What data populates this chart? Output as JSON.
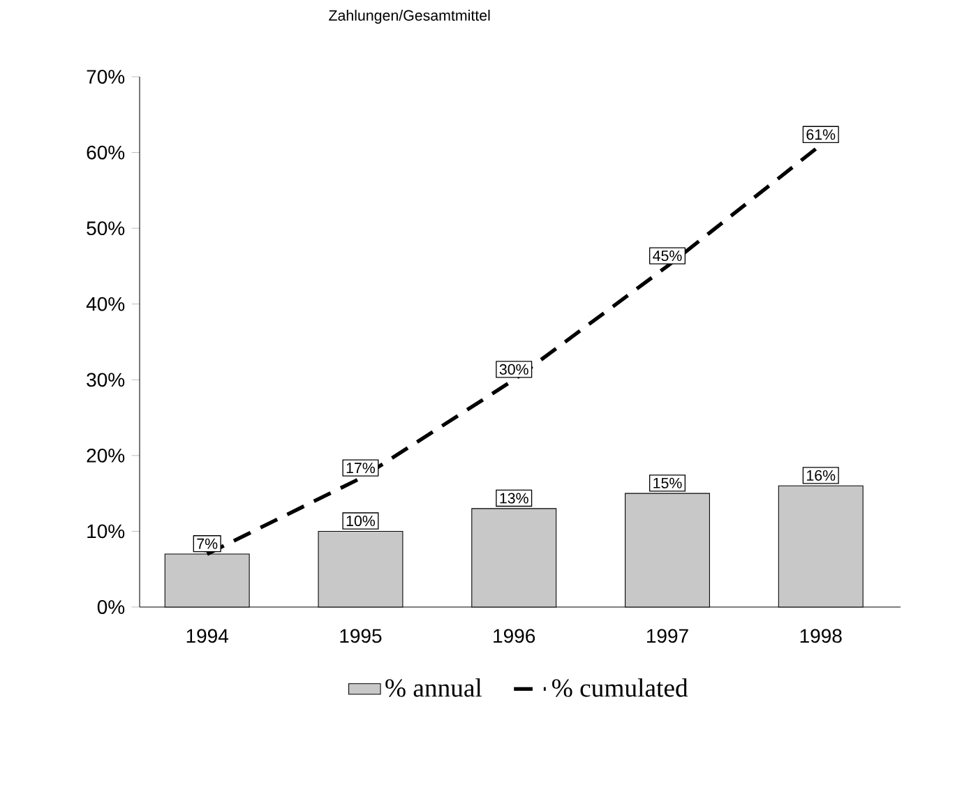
{
  "chart_data": {
    "type": "bar",
    "title": "Zahlungen/Gesamtmittel",
    "categories": [
      "1994",
      "1995",
      "1996",
      "1997",
      "1998"
    ],
    "series": [
      {
        "name": "% annual",
        "color": "#c8c8c8",
        "values": [
          7,
          10,
          13,
          15,
          16
        ],
        "value_labels": [
          null,
          "10%",
          "13%",
          "15%",
          "16%"
        ]
      },
      {
        "name": "% cumulated",
        "type": "line",
        "color": "#000000",
        "line_style": "dashed",
        "values": [
          7,
          17,
          30,
          45,
          61
        ],
        "value_labels": [
          "7%",
          "17%",
          "30%",
          "45%",
          "61%"
        ]
      }
    ],
    "ylim": [
      0,
      70
    ],
    "yticks": [
      {
        "value": 0,
        "label": "0%"
      },
      {
        "value": 10,
        "label": "10%"
      },
      {
        "value": 20,
        "label": "20%"
      },
      {
        "value": 30,
        "label": "30%"
      },
      {
        "value": 40,
        "label": "40%"
      },
      {
        "value": 50,
        "label": "50%"
      },
      {
        "value": 60,
        "label": "60%"
      },
      {
        "value": 70,
        "label": "70%"
      }
    ],
    "legend": "bottom"
  }
}
